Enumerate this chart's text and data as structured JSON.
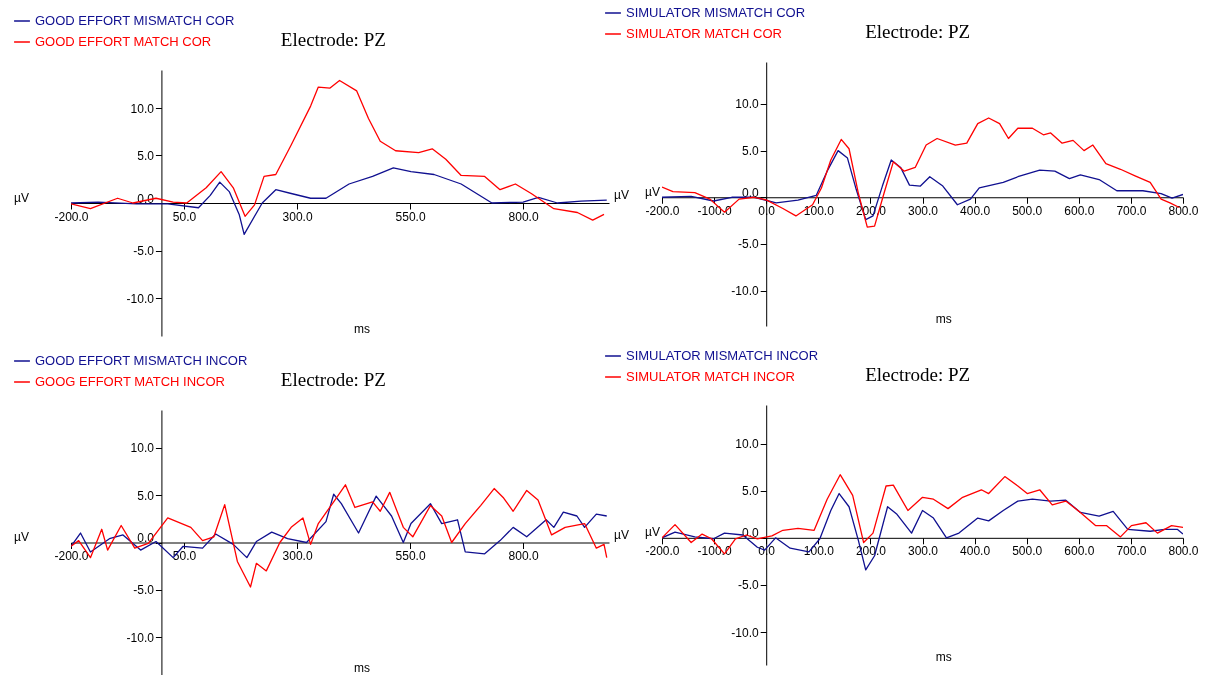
{
  "chart_data": [
    {
      "type": "line",
      "title": "Electrode: PZ",
      "xlabel": "ms",
      "ylabel": "µV",
      "annotations": [
        "µV"
      ],
      "legend": "top left",
      "xlim": [
        -200,
        990
      ],
      "ylim": [
        -14,
        14
      ],
      "xticks": [
        {
          "value": -200,
          "label": "-200.0"
        },
        {
          "value": 50,
          "label": "50.0"
        },
        {
          "value": 300,
          "label": "300.0"
        },
        {
          "value": 550,
          "label": "550.0"
        },
        {
          "value": 800,
          "label": "800.0"
        }
      ],
      "yticks": [
        {
          "value": -10,
          "label": "-10.0"
        },
        {
          "value": -5,
          "label": "-5.0"
        },
        {
          "value": 0,
          "label": "0.0"
        },
        {
          "value": 5,
          "label": "5.0"
        },
        {
          "value": 10,
          "label": "10.0"
        }
      ],
      "series": [
        {
          "name": "GOOD EFFORT MISMATCH COR",
          "color": "#101090",
          "x": [
            -200,
            -140,
            -55,
            14,
            82,
            108,
            129,
            150,
            172,
            183,
            223,
            253,
            287,
            330,
            364,
            415,
            467,
            513,
            552,
            603,
            663,
            731,
            800,
            834,
            876,
            928,
            985
          ],
          "values": [
            0,
            0.1,
            -0.1,
            -0.1,
            -0.5,
            0.8,
            2.2,
            1.2,
            -1.2,
            -3.3,
            0,
            1.4,
            1.0,
            0.5,
            0.5,
            2.0,
            2.8,
            3.7,
            3.3,
            3.0,
            2.0,
            0,
            0.1,
            0.6,
            0,
            0.2,
            0.3
          ]
        },
        {
          "name": "GOOD EFFORT MATCH COR",
          "color": "#ff0000",
          "x": [
            -200,
            -157,
            -97,
            -63,
            -12,
            26,
            56,
            99,
            132,
            159,
            185,
            206,
            227,
            253,
            287,
            330,
            347,
            373,
            394,
            432,
            458,
            484,
            518,
            569,
            599,
            629,
            663,
            715,
            749,
            783,
            818,
            868,
            920,
            954,
            979
          ],
          "values": [
            -0.1,
            -0.6,
            0.5,
            0,
            0.5,
            0.1,
            0,
            1.6,
            3.3,
            1.6,
            -1.4,
            -0.2,
            2.8,
            3.0,
            6.1,
            10.2,
            12.2,
            12.1,
            12.9,
            11.8,
            8.9,
            6.5,
            5.5,
            5.3,
            5.7,
            4.6,
            2.9,
            2.8,
            1.4,
            2.0,
            1.0,
            -0.6,
            -1.0,
            -1.8,
            -1.2
          ]
        }
      ]
    },
    {
      "type": "line",
      "title": "Electrode: PZ",
      "xlabel": "ms",
      "ylabel": "µV",
      "legend": "top left",
      "xlim": [
        -200,
        800
      ],
      "ylim": [
        -13.8,
        14.5
      ],
      "xticks": [
        {
          "value": -200,
          "label": "-200.0"
        },
        {
          "value": -100,
          "label": "-100.0"
        },
        {
          "value": 0,
          "label": "0.0"
        },
        {
          "value": 100,
          "label": "100.0"
        },
        {
          "value": 200,
          "label": "200.0"
        },
        {
          "value": 300,
          "label": "300.0"
        },
        {
          "value": 400,
          "label": "400.0"
        },
        {
          "value": 500,
          "label": "500.0"
        },
        {
          "value": 600,
          "label": "600.0"
        },
        {
          "value": 700,
          "label": "700.0"
        },
        {
          "value": 800,
          "label": "800.0"
        }
      ],
      "yticks": [
        {
          "value": -10,
          "label": "-10.0"
        },
        {
          "value": -5,
          "label": "-5.0"
        },
        {
          "value": 0,
          "label": "0.0"
        },
        {
          "value": 5,
          "label": "5.0"
        },
        {
          "value": 10,
          "label": "10.0"
        }
      ],
      "series": [
        {
          "name": "SIMULATOR MISMATCH COR",
          "color": "#101090",
          "x": [
            -200,
            -144,
            -101,
            -66,
            -23,
            19,
            61,
            96,
            117,
            138,
            156,
            173,
            191,
            205,
            223,
            240,
            258,
            275,
            296,
            314,
            339,
            367,
            392,
            409,
            455,
            483,
            525,
            554,
            582,
            603,
            639,
            673,
            723,
            758,
            779,
            800
          ],
          "values": [
            0,
            0.1,
            -0.4,
            0,
            0,
            -0.6,
            -0.3,
            0.2,
            2.8,
            5.0,
            4.2,
            0.8,
            -2.4,
            -2.0,
            1.2,
            4.0,
            3.2,
            1.3,
            1.2,
            2.2,
            1.2,
            -0.8,
            -0.2,
            1.0,
            1.6,
            2.2,
            2.9,
            2.8,
            2.0,
            2.4,
            1.9,
            0.7,
            0.7,
            0.4,
            -0.1,
            0.3
          ]
        },
        {
          "name": "SIMULATOR MATCH COR",
          "color": "#ff0000",
          "x": [
            -200,
            -179,
            -137,
            -108,
            -80,
            -52,
            -23,
            1,
            32,
            57,
            89,
            106,
            124,
            144,
            159,
            177,
            194,
            208,
            226,
            244,
            265,
            286,
            307,
            328,
            363,
            385,
            406,
            427,
            448,
            465,
            483,
            511,
            532,
            546,
            568,
            589,
            610,
            627,
            652,
            680,
            708,
            737,
            758,
            775,
            793
          ],
          "values": [
            1.1,
            0.6,
            0.5,
            -0.2,
            -1.6,
            -0.2,
            0,
            -0.3,
            -1.2,
            -2.0,
            -0.8,
            1.0,
            4.0,
            6.2,
            5.2,
            0.4,
            -3.2,
            -3.1,
            0.4,
            3.8,
            2.8,
            3.2,
            5.6,
            6.3,
            5.6,
            5.8,
            7.9,
            8.5,
            7.9,
            6.3,
            7.4,
            7.4,
            6.7,
            6.9,
            5.8,
            6.1,
            5.0,
            5.6,
            3.6,
            3.0,
            2.3,
            1.6,
            -0.2,
            -0.6,
            -1.1
          ]
        }
      ]
    },
    {
      "type": "line",
      "title": "Electrode: PZ",
      "xlabel": "ms",
      "ylabel": "µV",
      "annotations": [
        "µV"
      ],
      "legend": "top left",
      "xlim": [
        -200,
        990
      ],
      "ylim": [
        -14,
        14
      ],
      "xticks": [
        {
          "value": -200,
          "label": "-200.0"
        },
        {
          "value": 50,
          "label": "50.0"
        },
        {
          "value": 300,
          "label": "300.0"
        },
        {
          "value": 550,
          "label": "550.0"
        },
        {
          "value": 800,
          "label": "800.0"
        }
      ],
      "yticks": [
        {
          "value": -10,
          "label": "-10.0"
        },
        {
          "value": -5,
          "label": "-5.0"
        },
        {
          "value": 0,
          "label": "0.0"
        },
        {
          "value": 5,
          "label": "5.0"
        },
        {
          "value": 10,
          "label": "10.0"
        }
      ],
      "series": [
        {
          "name": "GOOD EFFORT MISMATCH INCOR",
          "color": "#101090",
          "x": [
            -200,
            -179,
            -157,
            -115,
            -85,
            -46,
            -12,
            26,
            48,
            91,
            120,
            159,
            189,
            210,
            244,
            279,
            321,
            364,
            381,
            398,
            436,
            475,
            509,
            535,
            552,
            595,
            620,
            655,
            672,
            715,
            749,
            778,
            808,
            851,
            868,
            889,
            919,
            936,
            962,
            985
          ],
          "values": [
            -0.4,
            1.0,
            -1.0,
            0.4,
            0.8,
            -0.8,
            0.1,
            -1.6,
            -0.4,
            -0.6,
            0.9,
            -0.2,
            -1.6,
            0.1,
            1.1,
            0.4,
            0,
            2.2,
            5.1,
            4.1,
            1.0,
            4.9,
            2.8,
            0,
            2.0,
            4.1,
            2.0,
            2.4,
            -1.0,
            -1.2,
            0.2,
            1.6,
            0.6,
            2.4,
            1.6,
            3.2,
            2.8,
            1.6,
            3.0,
            2.8
          ]
        },
        {
          "name": "GOOG EFFORT MATCH INCOR",
          "color": "#ff0000",
          "x": [
            -200,
            -183,
            -157,
            -132,
            -119,
            -89,
            -59,
            -29,
            14,
            65,
            91,
            116,
            140,
            168,
            197,
            210,
            232,
            262,
            287,
            313,
            330,
            347,
            381,
            407,
            428,
            467,
            484,
            505,
            535,
            556,
            595,
            620,
            642,
            672,
            706,
            736,
            757,
            778,
            808,
            833,
            863,
            893,
            936,
            962,
            979,
            985
          ],
          "values": [
            -0.4,
            0.2,
            -1.6,
            1.4,
            -0.8,
            1.8,
            -0.6,
            -0.1,
            2.6,
            1.6,
            0.2,
            0.6,
            4.0,
            -2.0,
            -4.7,
            -2.2,
            -3.0,
            0,
            1.6,
            2.6,
            -0.2,
            2.0,
            4.3,
            6.1,
            3.7,
            4.3,
            3.3,
            5.3,
            1.6,
            0.6,
            3.9,
            2.8,
            0,
            2.0,
            3.9,
            5.7,
            4.7,
            3.3,
            5.5,
            4.5,
            0.8,
            1.6,
            2.0,
            -0.6,
            -0.2,
            -1.6
          ]
        }
      ]
    },
    {
      "type": "line",
      "title": "Electrode: PZ",
      "xlabel": "ms",
      "ylabel": "µV",
      "legend": "top left",
      "xlim": [
        -200,
        800
      ],
      "ylim": [
        -13.5,
        14.1
      ],
      "xticks": [
        {
          "value": -200,
          "label": "-200.0"
        },
        {
          "value": -100,
          "label": "-100.0"
        },
        {
          "value": 0,
          "label": "0.0"
        },
        {
          "value": 100,
          "label": "100.0"
        },
        {
          "value": 200,
          "label": "200.0"
        },
        {
          "value": 300,
          "label": "300.0"
        },
        {
          "value": 400,
          "label": "400.0"
        },
        {
          "value": 500,
          "label": "500.0"
        },
        {
          "value": 600,
          "label": "600.0"
        },
        {
          "value": 700,
          "label": "700.0"
        },
        {
          "value": 800,
          "label": "800.0"
        }
      ],
      "yticks": [
        {
          "value": -10,
          "label": "-10.0"
        },
        {
          "value": -5,
          "label": "-5.0"
        },
        {
          "value": 0,
          "label": "0.0"
        },
        {
          "value": 5,
          "label": "5.0"
        },
        {
          "value": 10,
          "label": "10.0"
        }
      ],
      "series": [
        {
          "name": "SIMULATOR MISMATCH INCOR",
          "color": "#101090",
          "x": [
            -200,
            -175,
            -137,
            -101,
            -80,
            -45,
            -17,
            -3,
            18,
            46,
            82,
            103,
            124,
            140,
            159,
            177,
            191,
            208,
            233,
            251,
            279,
            300,
            321,
            346,
            370,
            406,
            427,
            455,
            483,
            511,
            546,
            575,
            603,
            639,
            666,
            694,
            737,
            765,
            789,
            800
          ],
          "values": [
            0,
            0.6,
            0.1,
            -0.1,
            0.5,
            0.3,
            -1.0,
            -1.3,
            0,
            -1.1,
            -1.5,
            -0.1,
            2.9,
            4.7,
            3.3,
            -0.3,
            -3.4,
            -1.9,
            3.3,
            2.5,
            0.5,
            2.9,
            2.1,
            0,
            0.5,
            2.1,
            1.8,
            2.9,
            3.9,
            4.1,
            3.9,
            4.0,
            2.7,
            2.3,
            2.8,
            0.9,
            0.7,
            0.9,
            0.9,
            0.4
          ]
        },
        {
          "name": "SIMULATOR MATCH INCOR",
          "color": "#ff0000",
          "x": [
            -200,
            -175,
            -144,
            -123,
            -105,
            -80,
            -59,
            -38,
            -17,
            11,
            32,
            61,
            92,
            117,
            142,
            166,
            187,
            205,
            230,
            244,
            272,
            300,
            321,
            349,
            377,
            413,
            427,
            458,
            483,
            501,
            525,
            549,
            575,
            603,
            632,
            653,
            680,
            701,
            729,
            751,
            778,
            800
          ],
          "values": [
            0,
            1.4,
            -0.5,
            0.4,
            -0.1,
            -1.7,
            -0.1,
            0.3,
            -0.1,
            0.2,
            0.8,
            1.0,
            0.8,
            4.1,
            6.7,
            4.5,
            -0.5,
            0.5,
            5.5,
            5.6,
            2.9,
            4.3,
            4.1,
            3.1,
            4.3,
            5.1,
            4.7,
            6.5,
            5.5,
            4.7,
            5.1,
            3.5,
            3.9,
            2.7,
            1.3,
            1.3,
            0.1,
            1.3,
            1.6,
            0.5,
            1.3,
            1.1
          ]
        }
      ]
    }
  ]
}
